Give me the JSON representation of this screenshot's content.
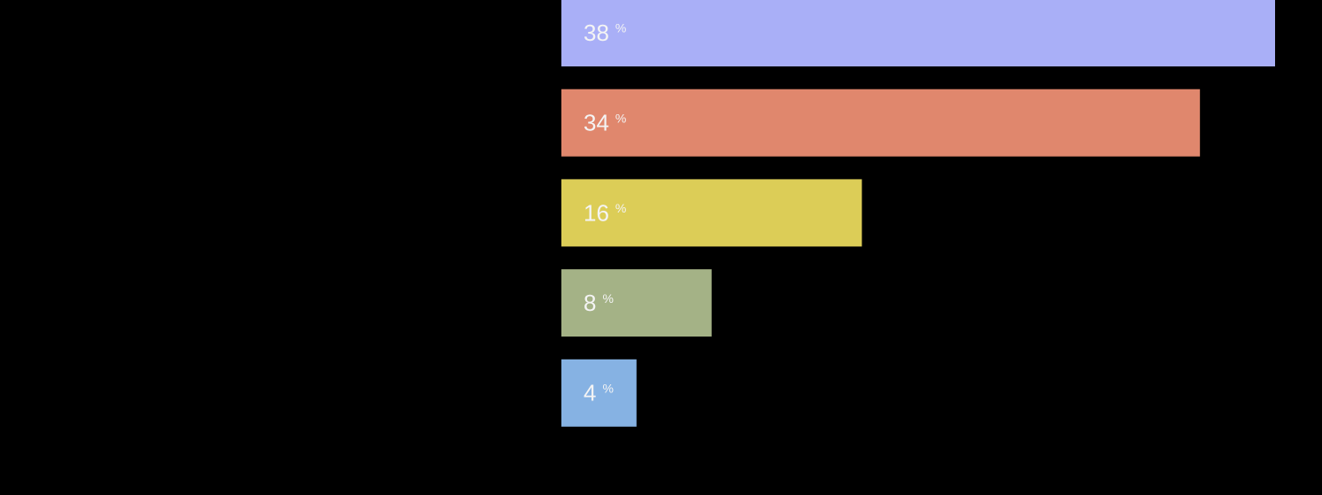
{
  "chart_data": {
    "type": "bar",
    "orientation": "horizontal",
    "values": [
      38,
      34,
      16,
      8,
      4
    ],
    "unit": "%",
    "colors": [
      "#a9aff7",
      "#e0876d",
      "#dccd57",
      "#a4b286",
      "#86b2e3"
    ]
  }
}
